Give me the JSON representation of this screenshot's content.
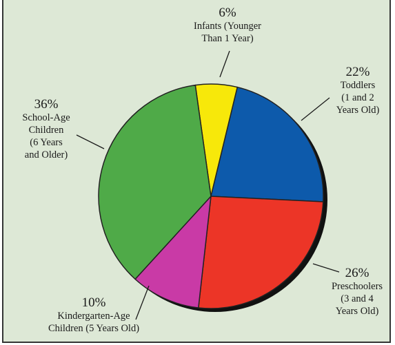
{
  "chart_data": {
    "type": "pie",
    "title": "",
    "slices": [
      {
        "label_lines": [
          "Infants (Younger",
          "Than 1 Year)"
        ],
        "percent_text": "6%",
        "value": 6,
        "color": "#f7e80a"
      },
      {
        "label_lines": [
          "Toddlers",
          "(1 and 2",
          "Years Old)"
        ],
        "percent_text": "22%",
        "value": 22,
        "color": "#0d5aab"
      },
      {
        "label_lines": [
          "Preschoolers",
          "(3 and 4",
          "Years Old)"
        ],
        "percent_text": "26%",
        "value": 26,
        "color": "#ec3527"
      },
      {
        "label_lines": [
          "Kindergarten-Age",
          "Children (5 Years Old)"
        ],
        "percent_text": "10%",
        "value": 10,
        "color": "#c93aa6"
      },
      {
        "label_lines": [
          "School-Age",
          "Children",
          "(6 Years",
          "and Older)"
        ],
        "percent_text": "36%",
        "value": 36,
        "color": "#4faa48"
      }
    ]
  },
  "colors": {
    "background": "#dde8d6",
    "slice_stroke": "#222222",
    "shadow": "#111111"
  }
}
